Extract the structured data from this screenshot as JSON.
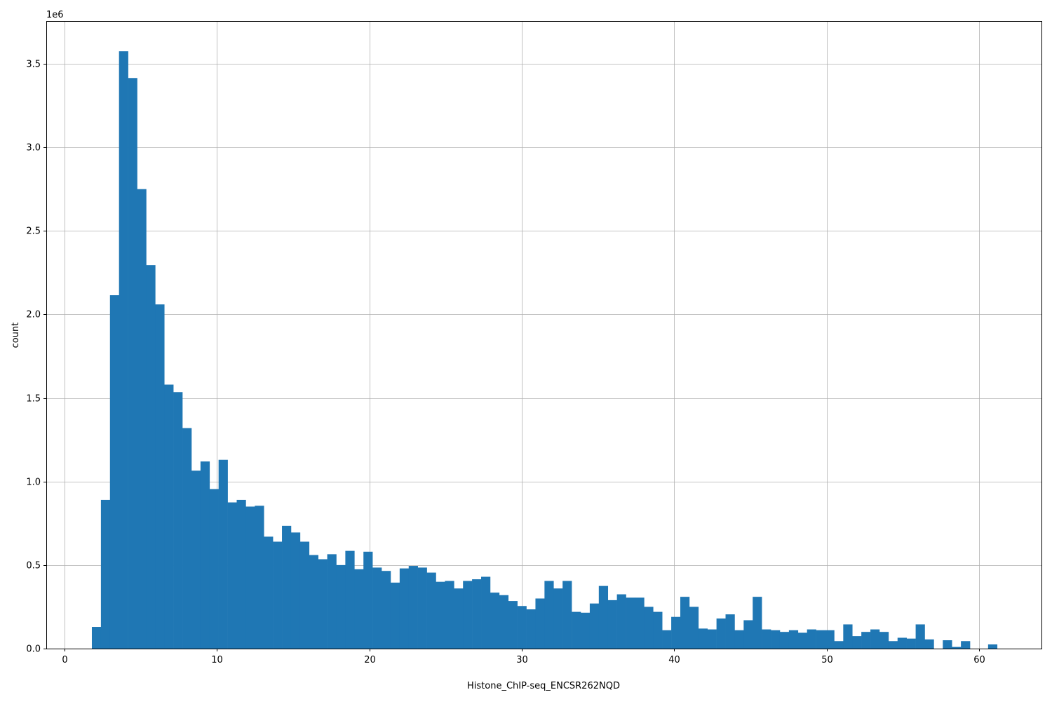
{
  "chart_data": {
    "type": "bar",
    "subtype": "histogram",
    "title": "",
    "xlabel": "Histone_ChIP-seq_ENCSR262NQD",
    "ylabel": "count",
    "y_offset_label": "1e6",
    "xlim": [
      -1.2,
      64.1
    ],
    "ylim": [
      0,
      3.756
    ],
    "x_ticks": [
      0,
      10,
      20,
      30,
      40,
      50,
      60
    ],
    "x_tick_labels": [
      "0",
      "10",
      "20",
      "30",
      "40",
      "50",
      "60"
    ],
    "y_ticks": [
      0,
      0.5,
      1.0,
      1.5,
      2.0,
      2.5,
      3.0,
      3.5
    ],
    "y_tick_labels": [
      "0.0",
      "0.5",
      "1.0",
      "1.5",
      "2.0",
      "2.5",
      "3.0",
      "3.5"
    ],
    "y_unit_multiplier": 1000000,
    "grid": true,
    "bar_color": "#1f77b4",
    "bin_start": 1.79,
    "bin_width": 0.594,
    "values": [
      0.13,
      0.89,
      2.115,
      3.575,
      3.415,
      2.75,
      2.295,
      2.06,
      1.58,
      1.535,
      1.32,
      1.065,
      1.12,
      0.955,
      1.13,
      0.875,
      0.89,
      0.85,
      0.855,
      0.67,
      0.64,
      0.735,
      0.695,
      0.64,
      0.56,
      0.535,
      0.565,
      0.5,
      0.585,
      0.475,
      0.58,
      0.485,
      0.465,
      0.395,
      0.48,
      0.495,
      0.485,
      0.455,
      0.4,
      0.405,
      0.36,
      0.405,
      0.415,
      0.43,
      0.335,
      0.32,
      0.285,
      0.255,
      0.235,
      0.3,
      0.405,
      0.36,
      0.405,
      0.22,
      0.215,
      0.27,
      0.375,
      0.29,
      0.325,
      0.305,
      0.305,
      0.25,
      0.22,
      0.11,
      0.19,
      0.31,
      0.25,
      0.12,
      0.115,
      0.18,
      0.205,
      0.11,
      0.17,
      0.31,
      0.115,
      0.11,
      0.1,
      0.11,
      0.095,
      0.115,
      0.11,
      0.11,
      0.045,
      0.145,
      0.075,
      0.1,
      0.115,
      0.1,
      0.045,
      0.065,
      0.06,
      0.145,
      0.055,
      0,
      0.05,
      0.01,
      0.045,
      0,
      0,
      0.025
    ]
  }
}
